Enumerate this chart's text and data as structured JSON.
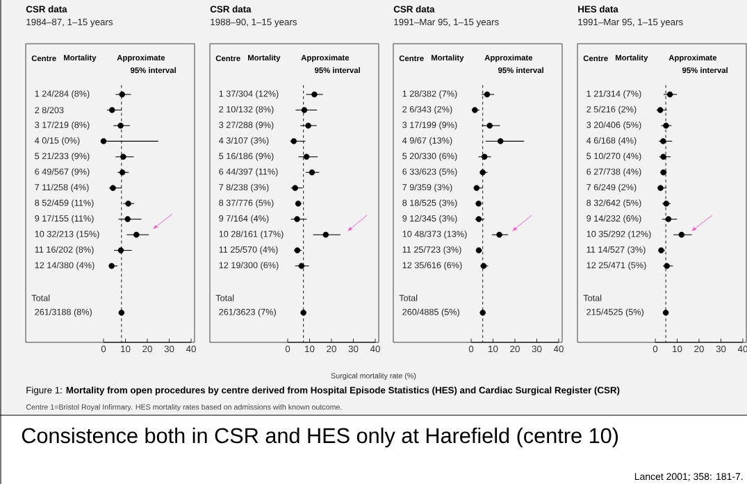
{
  "chart_data": [
    {
      "type": "scatter",
      "orientation": "horizontal",
      "title": "CSR data",
      "subtitle": "1984–87, 1–15 years",
      "color": "#000000",
      "categories": [
        "1 24/284 (8%)",
        "2 8/203",
        "3 17/219 (8%)",
        "4 0/15 (0%)",
        "5 21/233 (9%)",
        "6 49/567 (9%)",
        "7 11/258 (4%)",
        "8 52/459 (11%)",
        "9 17/155 (11%)",
        "10 32/213 (15%)",
        "11 16/202 (8%)",
        "12 14/380 (4%)",
        null,
        null,
        "261/3188 (8%)"
      ],
      "values": [
        8.5,
        3.9,
        7.8,
        0,
        9.0,
        8.6,
        4.3,
        11.3,
        11.0,
        15.0,
        7.9,
        3.7,
        null,
        null,
        8.2
      ],
      "errors": [
        [
          5.5,
          12.5
        ],
        [
          1.5,
          8.3
        ],
        [
          4.5,
          12
        ],
        [
          0,
          25
        ],
        [
          5.5,
          13.8
        ],
        [
          6.4,
          11.5
        ],
        [
          2.5,
          8.3
        ],
        [
          9,
          14
        ],
        [
          6.8,
          17.3
        ],
        [
          10.6,
          20.7
        ],
        [
          4.8,
          12.9
        ],
        [
          2.5,
          6.4
        ],
        null,
        null,
        null
      ],
      "xlim": [
        0,
        40
      ],
      "xticks": [
        0,
        10,
        20,
        30,
        40
      ],
      "ref_lines": [
        {
          "axis": "x",
          "value": 8.2,
          "color": "#000000",
          "line_style": "dashed"
        }
      ],
      "annotations": [
        "Centre",
        "Mortality",
        "Approximate",
        "95% interval",
        "Total"
      ]
    },
    {
      "type": "scatter",
      "orientation": "horizontal",
      "title": "CSR data",
      "subtitle": "1988–90, 1–15 years",
      "xlabel": "Surgical mortality rate (%)",
      "color": "#000000",
      "categories": [
        "1 37/304 (12%)",
        "2 10/132 (8%)",
        "3 27/288 (9%)",
        "4 3/107 (3%)",
        "5 16/186 (9%)",
        "6 44/397 (11%)",
        "7 8/238 (3%)",
        "8 37/776 (5%)",
        "9 7/164 (4%)",
        "10 28/161 (17%)",
        "11 25/570 (4%)",
        "12 19/300 (6%)",
        null,
        null,
        "261/3623 (7%)"
      ],
      "values": [
        12.2,
        7.6,
        9.4,
        2.8,
        8.6,
        11.1,
        3.4,
        4.8,
        4.3,
        17.4,
        4.4,
        6.3,
        null,
        null,
        7.2
      ],
      "errors": [
        [
          8.4,
          16.1
        ],
        [
          3.6,
          13.4
        ],
        [
          5.8,
          13.2
        ],
        [
          1.1,
          8.1
        ],
        [
          4.9,
          13.7
        ],
        [
          8.2,
          14.4
        ],
        [
          1.5,
          6.8
        ],
        [
          3.5,
          6.2
        ],
        [
          1.5,
          8.7
        ],
        [
          11.6,
          24.1
        ],
        [
          2.9,
          6.4
        ],
        [
          3.4,
          9.7
        ],
        null,
        null,
        null
      ],
      "xlim": [
        0,
        40
      ],
      "xticks": [
        0,
        10,
        20,
        30,
        40
      ],
      "ref_lines": [
        {
          "axis": "x",
          "value": 7.2,
          "color": "#000000",
          "line_style": "dashed"
        }
      ],
      "annotations": [
        "Centre",
        "Mortality",
        "Approximate",
        "95% interval",
        "Total"
      ]
    },
    {
      "type": "scatter",
      "orientation": "horizontal",
      "title": "CSR data",
      "subtitle": "1991–Mar 95, 1–15 years",
      "color": "#000000",
      "categories": [
        "1 28/382 (7%)",
        "2 6/343 (2%)",
        "3 17/199 (9%)",
        "4 9/67 (13%)",
        "5 20/330 (6%)",
        "6 33/623 (5%)",
        "7 9/359 (3%)",
        "8 18/525 (3%)",
        "9 12/345 (3%)",
        "10 48/373 (13%)",
        "11 25/723 (3%)",
        "12 35/616 (6%)",
        null,
        null,
        "260/4885 (5%)"
      ],
      "values": [
        7.3,
        1.7,
        8.5,
        13.4,
        6.1,
        5.3,
        2.5,
        3.4,
        3.5,
        12.9,
        3.5,
        5.7,
        null,
        null,
        5.3
      ],
      "errors": [
        [
          4.8,
          10.5
        ],
        [
          0.5,
          3.8
        ],
        [
          4.8,
          13.2
        ],
        [
          6.6,
          24.2
        ],
        [
          3.3,
          9.1
        ],
        [
          4,
          7.5
        ],
        [
          1.4,
          5.3
        ],
        [
          2,
          4.8
        ],
        [
          1.8,
          6.1
        ],
        [
          9.5,
          16.9
        ],
        [
          2.2,
          5.1
        ],
        [
          4.2,
          7.8
        ],
        null,
        null,
        null
      ],
      "xlim": [
        0,
        40
      ],
      "xticks": [
        0,
        10,
        20,
        30,
        40
      ],
      "ref_lines": [
        {
          "axis": "x",
          "value": 5.3,
          "color": "#000000",
          "line_style": "dashed"
        }
      ],
      "annotations": [
        "Centre",
        "Mortality",
        "Approximate",
        "95% interval",
        "Total"
      ]
    },
    {
      "type": "scatter",
      "orientation": "horizontal",
      "title": "HES data",
      "subtitle": "1991–Mar 95, 1–15 years",
      "color": "#000000",
      "categories": [
        "1 21/314 (7%)",
        "2 5/216 (2%)",
        "3 20/406 (5%)",
        "4 6/168 (4%)",
        "5 10/270 (4%)",
        "6 27/738 (4%)",
        "7 6/249 (2%)",
        "8 32/642 (5%)",
        "9 14/232 (6%)",
        "10 35/292 (12%)",
        "11 14/527 (3%)",
        "12 25/471 (5%)",
        null,
        null,
        "215/4525 (5%)"
      ],
      "values": [
        6.7,
        2.3,
        4.9,
        3.6,
        3.7,
        3.7,
        2.4,
        5.0,
        6.0,
        12.0,
        2.7,
        5.3,
        null,
        null,
        4.8
      ],
      "errors": [
        [
          3.8,
          9.9
        ],
        [
          0.5,
          5.3
        ],
        [
          2.7,
          7.4
        ],
        [
          1.6,
          7.7
        ],
        [
          1.8,
          7
        ],
        [
          2.4,
          5.3
        ],
        [
          1.1,
          5.1
        ],
        [
          3.2,
          7.0
        ],
        [
          3.1,
          9.9
        ],
        [
          8.3,
          16.7
        ],
        [
          1.5,
          4.4
        ],
        [
          3.5,
          8.1
        ],
        null,
        null,
        null
      ],
      "xlim": [
        0,
        40
      ],
      "xticks": [
        0,
        10,
        20,
        30,
        40
      ],
      "ref_lines": [
        {
          "axis": "x",
          "value": 4.8,
          "color": "#000000",
          "line_style": "dashed"
        }
      ],
      "annotations": [
        "Centre",
        "Mortality",
        "Approximate",
        "95% interval",
        "Total",
        "Figure 1: **Mortality from open procedures by centre derived from Hospital Episode Statistics (HES) and Cardiac Surgical Register (CSR)**",
        "Centre 1=Bristol Royal Infirmary. HES mortality rates based on admissions with known outcome.",
        "Consistence both in CSR and HES only at Harefield (centre 10)",
        "Lancet 2001; 358: 181-7."
      ]
    }
  ]
}
